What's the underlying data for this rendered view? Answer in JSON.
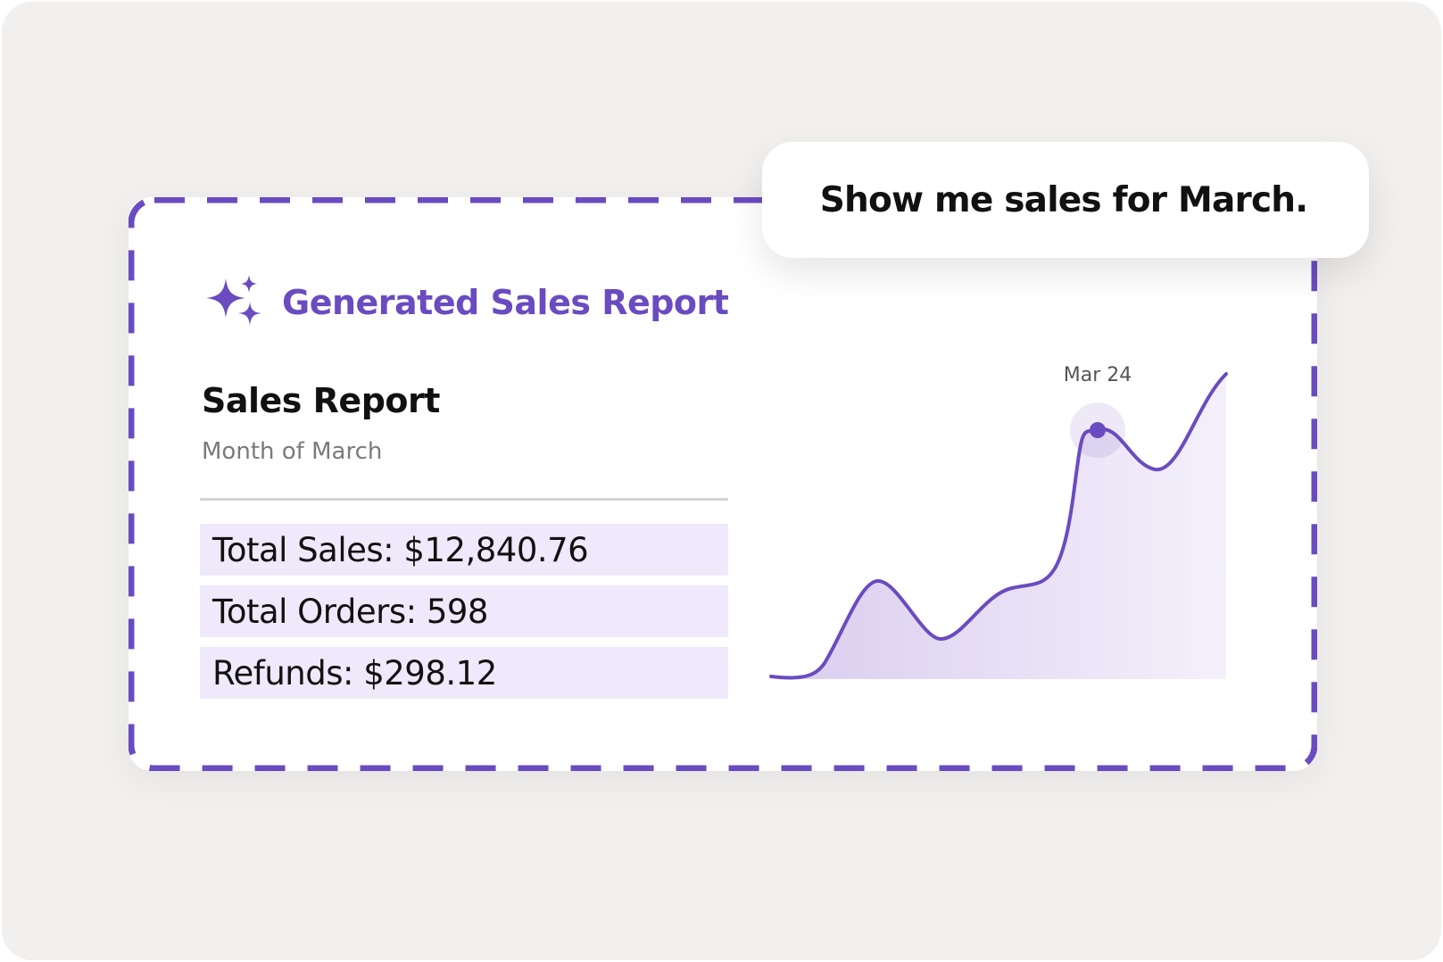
{
  "prompt": {
    "text": "Show me sales for March."
  },
  "header": {
    "title": "Generated Sales Report",
    "icon": "sparkle-icon"
  },
  "report": {
    "title": "Sales Report",
    "subtitle": "Month of March",
    "metrics": [
      {
        "label": "Total Sales: $12,840.76"
      },
      {
        "label": "Total Orders: 598"
      },
      {
        "label": "Refunds: $298.12"
      }
    ]
  },
  "colors": {
    "accent": "#6a4bc0",
    "background": "#f1f0ee",
    "metric_fill": "#efe9fb",
    "text": "#111111",
    "muted_text": "#7a7a7a"
  },
  "chart_data": {
    "type": "area",
    "title": "",
    "xlabel": "",
    "ylabel": "",
    "grid": false,
    "highlight": {
      "label": "Mar 24"
    }
  }
}
